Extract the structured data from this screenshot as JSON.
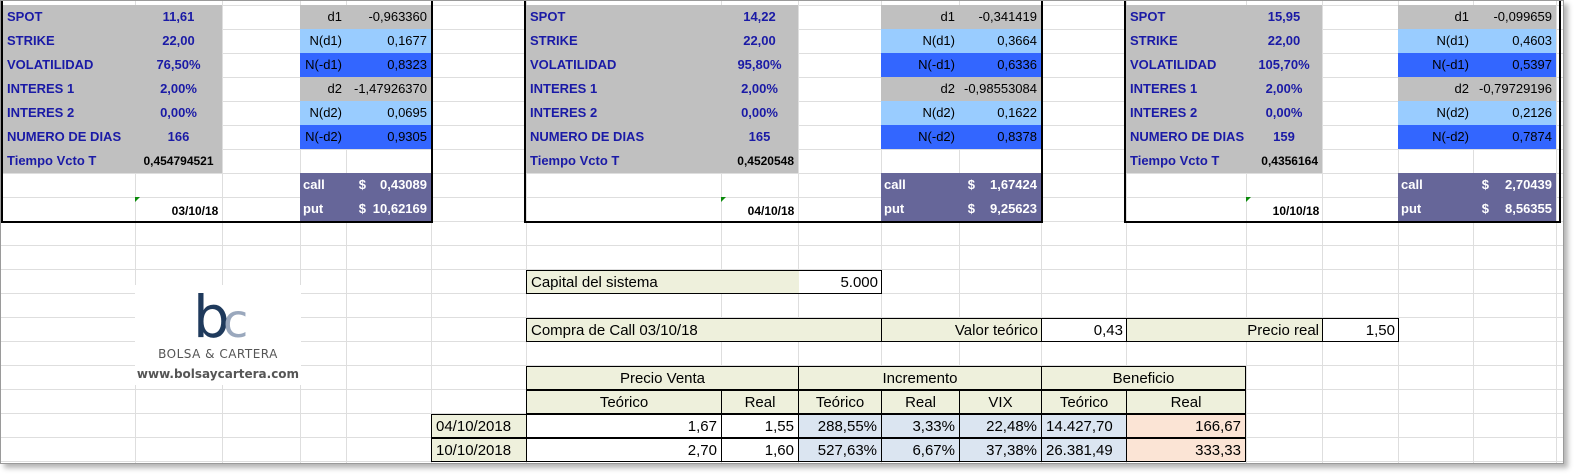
{
  "blocks": [
    {
      "labels": [
        "SPOT",
        "STRIKE",
        "VOLATILIDAD",
        "INTERES 1",
        "INTERES 2",
        "NUMERO DE DIAS",
        "Tiempo Vcto T"
      ],
      "values": [
        "11,61",
        "22,00",
        "76,50%",
        "2,00%",
        "0,00%",
        "166",
        "0,454794521"
      ],
      "d1_label": "d1",
      "d1": "-0,963360",
      "nd1_label": "N(d1)",
      "nd1": "0,1677",
      "nmd1_label": "N(-d1)",
      "nmd1": "0,8323",
      "d2_label": "d2",
      "d2": "-1,47926370",
      "nd2_label": "N(d2)",
      "nd2": "0,0695",
      "nmd2_label": "N(-d2)",
      "nmd2": "0,9305",
      "call_label": "call",
      "call": "0,43089",
      "put_label": "put",
      "put": "10,62169",
      "currency": "$",
      "date": "03/10/18"
    },
    {
      "labels": [
        "SPOT",
        "STRIKE",
        "VOLATILIDAD",
        "INTERES 1",
        "INTERES 2",
        "NUMERO DE DIAS",
        "Tiempo Vcto T"
      ],
      "values": [
        "14,22",
        "22,00",
        "95,80%",
        "2,00%",
        "0,00%",
        "165",
        "0,4520548"
      ],
      "d1_label": "d1",
      "d1": "-0,341419",
      "nd1_label": "N(d1)",
      "nd1": "0,3664",
      "nmd1_label": "N(-d1)",
      "nmd1": "0,6336",
      "d2_label": "d2",
      "d2": "-0,98553084",
      "nd2_label": "N(d2)",
      "nd2": "0,1622",
      "nmd2_label": "N(-d2)",
      "nmd2": "0,8378",
      "call_label": "call",
      "call": "1,67424",
      "put_label": "put",
      "put": "9,25623",
      "currency": "$",
      "date": "04/10/18"
    },
    {
      "labels": [
        "SPOT",
        "STRIKE",
        "VOLATILIDAD",
        "INTERES 1",
        "INTERES 2",
        "NUMERO DE DIAS",
        "Tiempo Vcto T"
      ],
      "values": [
        "15,95",
        "22,00",
        "105,70%",
        "2,00%",
        "0,00%",
        "159",
        "0,4356164"
      ],
      "d1_label": "d1",
      "d1": "-0,099659",
      "nd1_label": "N(d1)",
      "nd1": "0,4603",
      "nmd1_label": "N(-d1)",
      "nmd1": "0,5397",
      "d2_label": "d2",
      "d2": "-0,79729196",
      "nd2_label": "N(d2)",
      "nd2": "0,2126",
      "nmd2_label": "N(-d2)",
      "nmd2": "0,7874",
      "call_label": "call",
      "call": "2,70439",
      "put_label": "put",
      "put": "8,56355",
      "currency": "$",
      "date": "10/10/18"
    }
  ],
  "logo": {
    "mark_b": "b",
    "mark_c": "c",
    "name": "BOLSA & CARTERA",
    "url": "www.bolsaycartera.com",
    "colors": {
      "b": "#1f3a5c",
      "c": "#9aa8bd"
    }
  },
  "capital": {
    "label": "Capital del sistema",
    "value": "5.000"
  },
  "compra": {
    "label": "Compra de Call 03/10/18",
    "valor_label": "Valor teórico",
    "valor": "0,43",
    "precio_label": "Precio real",
    "precio": "1,50"
  },
  "results": {
    "groups": [
      "Precio Venta",
      "Incremento",
      "Beneficio"
    ],
    "subheaders": [
      "Teórico",
      "Real",
      "Teórico",
      "Real",
      "VIX",
      "Teórico",
      "Real"
    ],
    "rows": [
      {
        "date": "04/10/2018",
        "cells": [
          "1,67",
          "1,55",
          "288,55%",
          "3,33%",
          "22,48%",
          "14.427,70",
          "166,67"
        ]
      },
      {
        "date": "10/10/2018",
        "cells": [
          "2,70",
          "1,60",
          "527,63%",
          "6,67%",
          "37,38%",
          "26.381,49",
          "333,33"
        ]
      }
    ]
  },
  "colors": {
    "gray": "#c0c0c0",
    "light_blue": "#99ccff",
    "dark_blue": "#3366ff",
    "purple": "#666699",
    "label_text": "#1a1aa6",
    "cream": "#eef0dc",
    "light_blue_cell": "#dbe5f1",
    "peach": "#fbe4d5"
  }
}
